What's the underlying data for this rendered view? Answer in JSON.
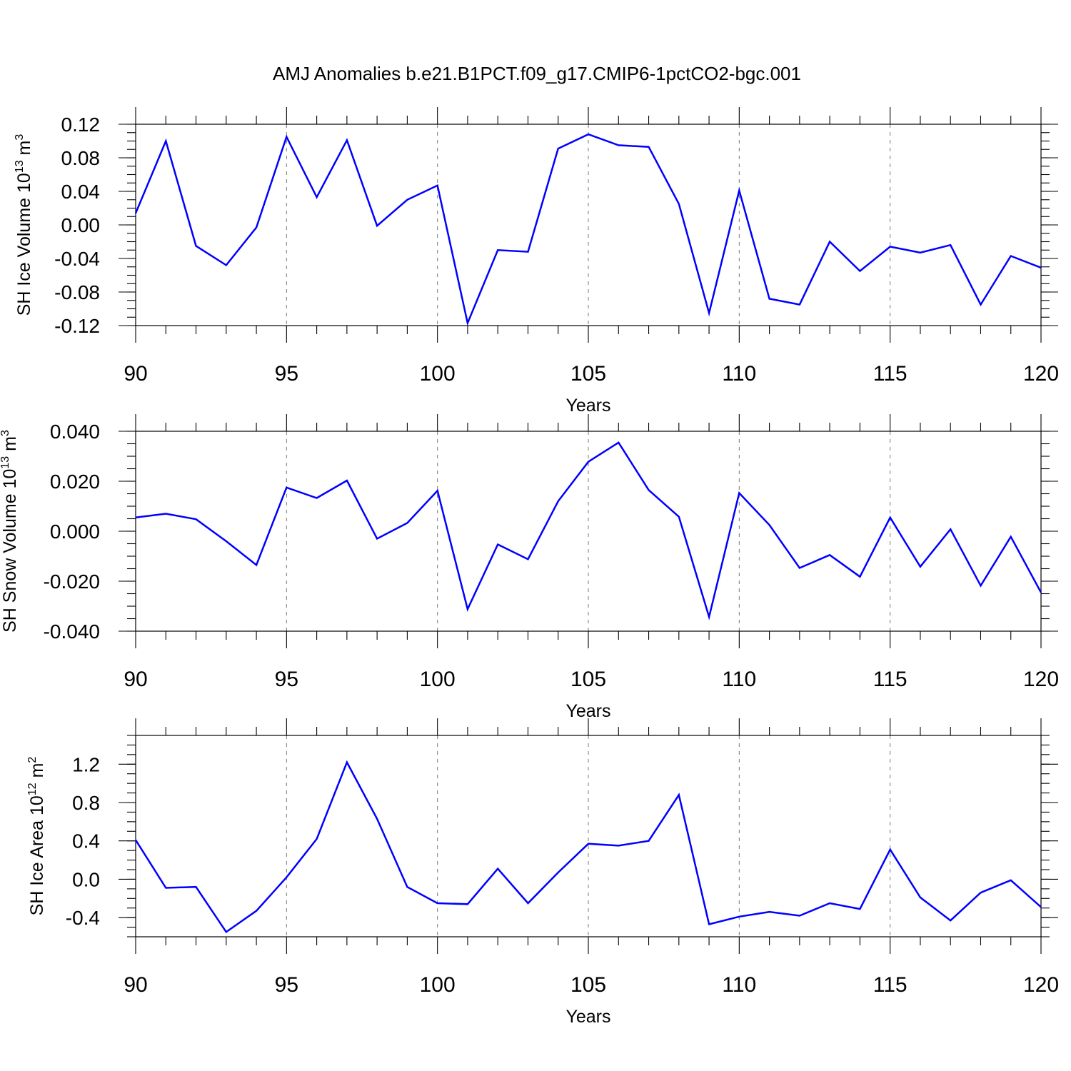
{
  "figure_title": "AMJ Anomalies b.e21.B1PCT.f09_g17.CMIP6-1pctCO2-bgc.001",
  "colors": {
    "line": "#0000ff",
    "grid": "#777777",
    "axes": "#000000",
    "background": "#ffffff"
  },
  "chart_data": [
    {
      "type": "line",
      "title": "AMJ Anomalies b.e21.B1PCT.f09_g17.CMIP6-1pctCO2-bgc.001",
      "ylabel": "SH Ice Volume",
      "yunit_base": "10",
      "yunit_exp": "13",
      "yunit_tail": "m",
      "yunit_tail_exp": "3",
      "xlabel": "Years",
      "xlim": [
        90,
        120
      ],
      "ylim": [
        -0.12,
        0.12
      ],
      "xticks": [
        "90",
        "95",
        "100",
        "105",
        "110",
        "115",
        "120"
      ],
      "yticks": [
        "-0.12",
        "-0.08",
        "-0.04",
        "0.00",
        "0.04",
        "0.08",
        "0.12"
      ],
      "grid": "vertical dashed at major x ticks",
      "x": [
        90,
        91,
        92,
        93,
        94,
        95,
        96,
        97,
        98,
        99,
        100,
        101,
        102,
        103,
        104,
        105,
        106,
        107,
        108,
        109,
        110,
        111,
        112,
        113,
        114,
        115,
        116,
        117,
        118,
        119,
        120
      ],
      "values": [
        0.014,
        0.1,
        -0.025,
        -0.048,
        -0.003,
        0.105,
        0.033,
        0.101,
        -0.001,
        0.03,
        0.047,
        -0.117,
        -0.03,
        -0.032,
        0.091,
        0.108,
        0.095,
        0.093,
        0.025,
        -0.105,
        0.041,
        -0.088,
        -0.095,
        -0.02,
        -0.055,
        -0.026,
        -0.033,
        -0.024,
        -0.095,
        -0.037,
        -0.051
      ]
    },
    {
      "type": "line",
      "ylabel": "SH Snow Volume",
      "yunit_base": "10",
      "yunit_exp": "13",
      "yunit_tail": "m",
      "yunit_tail_exp": "3",
      "xlabel": "Years",
      "xlim": [
        90,
        120
      ],
      "ylim": [
        -0.04,
        0.04
      ],
      "xticks": [
        "90",
        "95",
        "100",
        "105",
        "110",
        "115",
        "120"
      ],
      "yticks": [
        "-0.040",
        "-0.020",
        "0.000",
        "0.020",
        "0.040"
      ],
      "grid": "vertical dashed at major x ticks",
      "x": [
        90,
        91,
        92,
        93,
        94,
        95,
        96,
        97,
        98,
        99,
        100,
        101,
        102,
        103,
        104,
        105,
        106,
        107,
        108,
        109,
        110,
        111,
        112,
        113,
        114,
        115,
        116,
        117,
        118,
        119,
        120
      ],
      "values": [
        0.0055,
        0.007,
        0.0048,
        -0.004,
        -0.0135,
        0.0175,
        0.0133,
        0.0203,
        -0.003,
        0.0033,
        0.0162,
        -0.0312,
        -0.0053,
        -0.0112,
        0.012,
        0.0278,
        0.0355,
        0.0165,
        0.0058,
        -0.0343,
        0.0153,
        0.0025,
        -0.0147,
        -0.0095,
        -0.0182,
        0.0055,
        -0.0142,
        0.0008,
        -0.0218,
        -0.0022,
        -0.0245
      ]
    },
    {
      "type": "line",
      "ylabel": "SH Ice Area",
      "yunit_base": "10",
      "yunit_exp": "12",
      "yunit_tail": "m",
      "yunit_tail_exp": "2",
      "xlabel": "Years",
      "xlim": [
        90,
        120
      ],
      "ylim": [
        -0.6,
        1.5
      ],
      "xticks": [
        "90",
        "95",
        "100",
        "105",
        "110",
        "115",
        "120"
      ],
      "yticks": [
        "-0.4",
        "0.0",
        "0.4",
        "0.8",
        "1.2"
      ],
      "grid": "vertical dashed at major x ticks",
      "x": [
        90,
        91,
        92,
        93,
        94,
        95,
        96,
        97,
        98,
        99,
        100,
        101,
        102,
        103,
        104,
        105,
        106,
        107,
        108,
        109,
        110,
        111,
        112,
        113,
        114,
        115,
        116,
        117,
        118,
        119,
        120
      ],
      "values": [
        0.41,
        -0.09,
        -0.08,
        -0.55,
        -0.33,
        0.02,
        0.42,
        1.22,
        0.63,
        -0.08,
        -0.25,
        -0.26,
        0.11,
        -0.25,
        0.07,
        0.37,
        0.35,
        0.4,
        0.88,
        -0.47,
        -0.39,
        -0.34,
        -0.38,
        -0.25,
        -0.31,
        0.31,
        -0.19,
        -0.43,
        -0.14,
        -0.01,
        -0.29
      ]
    }
  ]
}
